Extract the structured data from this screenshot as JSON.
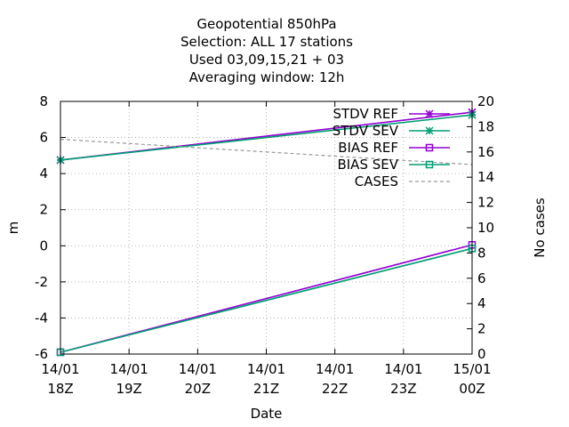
{
  "chart_data": {
    "type": "line",
    "title_lines": [
      "Geopotential 850hPa",
      "Selection: ALL      17 stations",
      "Used  03,09,15,21 + 03",
      "Averaging window: 12h"
    ],
    "xlabel": "Date",
    "ylabel": "m",
    "y2label": "No cases",
    "x_ticks": [
      {
        "top": "14/01",
        "bottom": "18Z"
      },
      {
        "top": "14/01",
        "bottom": "19Z"
      },
      {
        "top": "14/01",
        "bottom": "20Z"
      },
      {
        "top": "14/01",
        "bottom": "21Z"
      },
      {
        "top": "14/01",
        "bottom": "22Z"
      },
      {
        "top": "14/01",
        "bottom": "23Z"
      },
      {
        "top": "15/01",
        "bottom": "00Z"
      }
    ],
    "x": [
      "14/01 18Z",
      "15/01 00Z"
    ],
    "x_hours": [
      0,
      6
    ],
    "xlim": [
      0,
      6
    ],
    "ylim": [
      -6,
      8
    ],
    "y_ticks": [
      -6,
      -4,
      -2,
      0,
      2,
      4,
      6,
      8
    ],
    "y2lim": [
      0,
      20
    ],
    "y2_ticks": [
      0,
      2,
      4,
      6,
      8,
      10,
      12,
      14,
      16,
      18,
      20
    ],
    "grid": true,
    "legend_position": "top-right",
    "series": [
      {
        "name": "STDV REF",
        "axis": "y",
        "color": "#9400d3",
        "marker": "star",
        "dash": false,
        "values": [
          4.75,
          7.4
        ]
      },
      {
        "name": "STDV SEV",
        "axis": "y",
        "color": "#009e73",
        "marker": "star",
        "dash": false,
        "values": [
          4.75,
          7.25
        ]
      },
      {
        "name": "BIAS REF",
        "axis": "y",
        "color": "#9400d3",
        "marker": "square",
        "dash": false,
        "values": [
          -5.9,
          0.05
        ]
      },
      {
        "name": "BIAS SEV",
        "axis": "y",
        "color": "#009e73",
        "marker": "square",
        "dash": false,
        "values": [
          -5.9,
          -0.15
        ]
      },
      {
        "name": "CASES",
        "axis": "y2",
        "color": "#999999",
        "marker": "none",
        "dash": true,
        "values": [
          17,
          15
        ]
      }
    ]
  }
}
